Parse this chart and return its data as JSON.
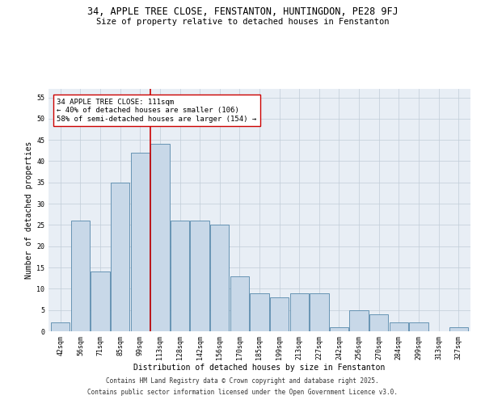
{
  "title": "34, APPLE TREE CLOSE, FENSTANTON, HUNTINGDON, PE28 9FJ",
  "subtitle": "Size of property relative to detached houses in Fenstanton",
  "xlabel": "Distribution of detached houses by size in Fenstanton",
  "ylabel": "Number of detached properties",
  "categories": [
    "42sqm",
    "56sqm",
    "71sqm",
    "85sqm",
    "99sqm",
    "113sqm",
    "128sqm",
    "142sqm",
    "156sqm",
    "170sqm",
    "185sqm",
    "199sqm",
    "213sqm",
    "227sqm",
    "242sqm",
    "256sqm",
    "270sqm",
    "284sqm",
    "299sqm",
    "313sqm",
    "327sqm"
  ],
  "values": [
    2,
    26,
    14,
    35,
    42,
    44,
    26,
    26,
    25,
    13,
    9,
    8,
    9,
    9,
    1,
    5,
    4,
    2,
    2,
    0,
    1
  ],
  "bar_color": "#c8d8e8",
  "bar_edge_color": "#5588aa",
  "vline_color": "#cc0000",
  "annotation_text": "34 APPLE TREE CLOSE: 111sqm\n← 40% of detached houses are smaller (106)\n58% of semi-detached houses are larger (154) →",
  "annotation_box_color": "#cc0000",
  "ylim": [
    0,
    57
  ],
  "yticks": [
    0,
    5,
    10,
    15,
    20,
    25,
    30,
    35,
    40,
    45,
    50,
    55
  ],
  "grid_color": "#c0ccd8",
  "bg_color": "#e8eef5",
  "footer_line1": "Contains HM Land Registry data © Crown copyright and database right 2025.",
  "footer_line2": "Contains public sector information licensed under the Open Government Licence v3.0.",
  "title_fontsize": 8.5,
  "subtitle_fontsize": 7.5,
  "axis_label_fontsize": 7,
  "tick_fontsize": 6,
  "annotation_fontsize": 6.5,
  "footer_fontsize": 5.5
}
